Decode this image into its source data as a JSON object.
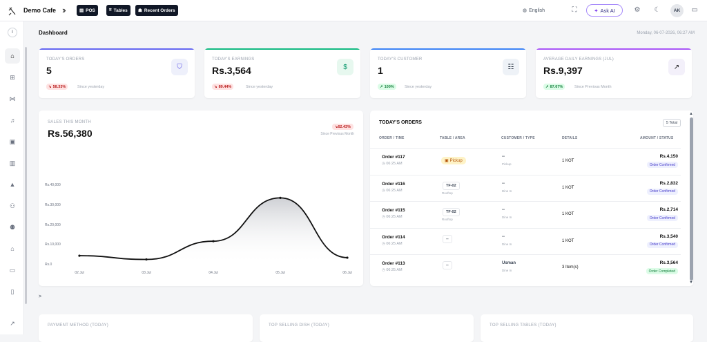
{
  "topbar": {
    "brand": "Demo Cafe",
    "pills": [
      {
        "label": "POS",
        "icon": "pos-icon"
      },
      {
        "label": "Tables",
        "icon": "tables-icon"
      },
      {
        "label": "Recent Orders",
        "icon": "orders-icon"
      }
    ],
    "language": "English",
    "ask_ai": "Ask AI",
    "avatar": "AK"
  },
  "sidebar": {
    "profile_initial": "I",
    "items": [
      "home-icon",
      "menu-icon",
      "kitchen-icon",
      "bell-icon",
      "calendar-icon",
      "document-icon",
      "dish-icon",
      "users-icon",
      "staff-icon",
      "delivery-icon",
      "wallet-icon",
      "bag-icon"
    ],
    "expand": ">"
  },
  "page": {
    "title": "Dashboard",
    "datetime": "Monday, 06-07-2026, 06:27 AM"
  },
  "stats": [
    {
      "label": "TODAY'S ORDERS",
      "value": "5",
      "change": "58.33%",
      "dir": "down",
      "since": "Since yesterday",
      "accent": "#6366f1",
      "icon": "bag-icon",
      "icon_glyph": "⛉",
      "icon_bg": "#eef0fb",
      "icon_color": "#4f46e5"
    },
    {
      "label": "TODAY'S EARNINGS",
      "value": "Rs.3,564",
      "change": "89.44%",
      "dir": "down",
      "since": "Since yesterday",
      "accent": "#10b981",
      "icon": "dollar-icon",
      "icon_glyph": "$",
      "icon_bg": "#e7f8ef",
      "icon_color": "#059669"
    },
    {
      "label": "TODAY'S CUSTOMER",
      "value": "1",
      "change": "100%",
      "dir": "up",
      "since": "Since yesterday",
      "accent": "#3b82f6",
      "icon": "customers-icon",
      "icon_glyph": "☷",
      "icon_bg": "#eef2f7",
      "icon_color": "#1f2937"
    },
    {
      "label": "AVERAGE DAILY EARNINGS (JUL)",
      "value": "Rs.9,397",
      "change": "87.67%",
      "dir": "up",
      "since": "Since Previous Month",
      "accent": "#a855f7",
      "icon": "trend-up-icon",
      "icon_glyph": "↗",
      "icon_bg": "#f3f0fa",
      "icon_color": "#111"
    }
  ],
  "sales": {
    "label": "SALES THIS MONTH",
    "value": "Rs.56,380",
    "change": "62.43%",
    "since": "Since Previous Month"
  },
  "chart_data": {
    "type": "area",
    "x": [
      "02 Jul",
      "03 Jul",
      "04 Jul",
      "05 Jul",
      "06 Jul"
    ],
    "y_ticks": [
      "Rs.40,000",
      "Rs.30,000",
      "Rs.20,000",
      "Rs.10,000",
      "Rs.0"
    ],
    "values": [
      4500,
      2600,
      11800,
      33600,
      3500
    ],
    "ylim": [
      0,
      40000
    ],
    "grid": false
  },
  "orders": {
    "title": "TODAY'S ORDERS",
    "total": "5 Total",
    "headers": [
      "ORDER / TIME",
      "TABLE / AREA",
      "CUSTOMER / TYPE",
      "DETAILS",
      "AMOUNT / STATUS"
    ],
    "rows": [
      {
        "order": "Order #117",
        "time": "06:25 AM",
        "table": "",
        "area": "",
        "pickup": "Pickup",
        "customer": "--",
        "type": "Pickup",
        "details": "1 KOT",
        "amount": "Rs.4,150",
        "status": "Order Confirmed",
        "status_kind": "confirmed"
      },
      {
        "order": "Order #116",
        "time": "06:25 AM",
        "table": "TF-02",
        "area": "Rooftop",
        "pickup": "",
        "customer": "--",
        "type": "Dine In",
        "details": "1 KOT",
        "amount": "Rs.2,832",
        "status": "Order Confirmed",
        "status_kind": "confirmed"
      },
      {
        "order": "Order #115",
        "time": "06:25 AM",
        "table": "TF-02",
        "area": "Rooftop",
        "pickup": "",
        "customer": "--",
        "type": "Dine In",
        "details": "1 KOT",
        "amount": "Rs.2,714",
        "status": "Order Confirmed",
        "status_kind": "confirmed"
      },
      {
        "order": "Order #114",
        "time": "06:25 AM",
        "table": "--",
        "area": "",
        "pickup": "",
        "customer": "--",
        "type": "Dine In",
        "details": "1 KOT",
        "amount": "Rs.3,540",
        "status": "Order Confirmed",
        "status_kind": "confirmed"
      },
      {
        "order": "Order #113",
        "time": "06:25 AM",
        "table": "--",
        "area": "",
        "pickup": "",
        "customer": "Usman",
        "type": "Dine In",
        "details": "3 Item(s)",
        "amount": "Rs.3,564",
        "status": "Order Completed",
        "status_kind": "completed"
      }
    ]
  },
  "bottom": [
    "PAYMENT METHOD (TODAY)",
    "TOP SELLING DISH (TODAY)",
    "TOP SELLING TABLES (TODAY)"
  ],
  "colors": {
    "confirmed_bg": "#eef0fe",
    "confirmed_fg": "#4338ca",
    "completed_bg": "#dcfce7",
    "completed_fg": "#15803d"
  }
}
